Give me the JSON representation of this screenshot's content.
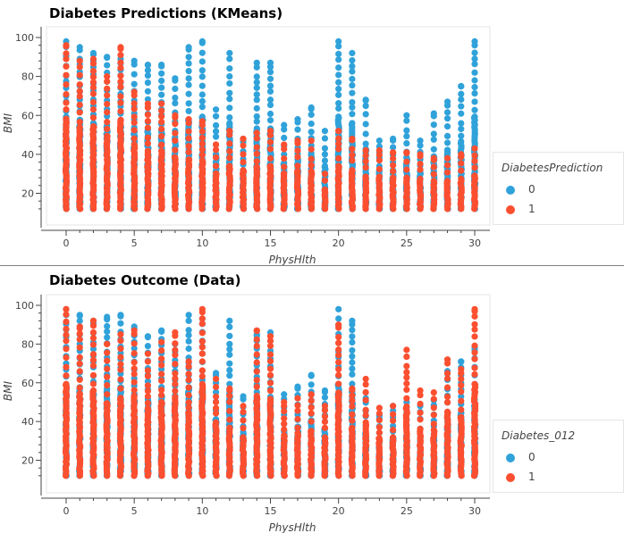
{
  "colors": {
    "class_0": "#30a2da",
    "class_1": "#fc4f30",
    "grid": "#e5e5e5",
    "axis": "#444444"
  },
  "chart_data": [
    {
      "type": "scatter",
      "title": "Diabetes Predictions (KMeans)",
      "xlabel": "PhysHlth",
      "ylabel": "BMI",
      "xlim": [
        0,
        30
      ],
      "ylim": [
        12,
        98
      ],
      "xticks": [
        0,
        5,
        10,
        15,
        20,
        25,
        30
      ],
      "yticks": [
        20,
        40,
        60,
        80,
        100
      ],
      "legend_title": "DiabetesPrediction",
      "legend_position": "right",
      "series": [
        {
          "name": "0",
          "color": "#30a2da",
          "points": [
            [
              0,
              98
            ],
            [
              1,
              95
            ],
            [
              2,
              92
            ],
            [
              3,
              90
            ],
            [
              4,
              89
            ],
            [
              5,
              88
            ],
            [
              6,
              86
            ],
            [
              7,
              86
            ],
            [
              8,
              79
            ],
            [
              9,
              95
            ],
            [
              10,
              98
            ],
            [
              11,
              63
            ],
            [
              12,
              92
            ],
            [
              13,
              48
            ],
            [
              14,
              87
            ],
            [
              15,
              87
            ],
            [
              16,
              55
            ],
            [
              17,
              58
            ],
            [
              18,
              64
            ],
            [
              19,
              52
            ],
            [
              20,
              98
            ],
            [
              21,
              92
            ],
            [
              22,
              68
            ],
            [
              23,
              47
            ],
            [
              24,
              48
            ],
            [
              25,
              60
            ],
            [
              26,
              47
            ],
            [
              27,
              61
            ],
            [
              28,
              67
            ],
            [
              29,
              75
            ],
            [
              30,
              98
            ]
          ]
        },
        {
          "name": "1",
          "color": "#fc4f30",
          "points": [
            [
              0,
              96
            ],
            [
              1,
              88
            ],
            [
              2,
              89
            ],
            [
              3,
              80
            ],
            [
              4,
              95
            ],
            [
              5,
              72
            ],
            [
              6,
              66
            ],
            [
              7,
              66
            ],
            [
              8,
              60
            ],
            [
              9,
              58
            ],
            [
              10,
              57
            ],
            [
              11,
              45
            ],
            [
              12,
              52
            ],
            [
              13,
              48
            ],
            [
              14,
              51
            ],
            [
              15,
              52
            ],
            [
              16,
              45
            ],
            [
              17,
              47
            ],
            [
              18,
              47
            ],
            [
              19,
              30
            ],
            [
              20,
              52
            ],
            [
              21,
              48
            ],
            [
              22,
              42
            ],
            [
              23,
              42
            ],
            [
              24,
              41
            ],
            [
              25,
              41
            ],
            [
              26,
              40
            ],
            [
              27,
              38
            ],
            [
              28,
              38
            ],
            [
              29,
              40
            ],
            [
              30,
              43
            ]
          ]
        }
      ]
    },
    {
      "type": "scatter",
      "title": "Diabetes Outcome (Data)",
      "xlabel": "PhysHlth",
      "ylabel": "BMI",
      "xlim": [
        0,
        30
      ],
      "ylim": [
        12,
        98
      ],
      "xticks": [
        0,
        5,
        10,
        15,
        20,
        25,
        30
      ],
      "yticks": [
        20,
        40,
        60,
        80,
        100
      ],
      "legend_title": "Diabetes_012",
      "legend_position": "right",
      "series": [
        {
          "name": "0",
          "color": "#30a2da",
          "points": [
            [
              0,
              98
            ],
            [
              1,
              95
            ],
            [
              2,
              92
            ],
            [
              3,
              94
            ],
            [
              4,
              95
            ],
            [
              5,
              89
            ],
            [
              6,
              84
            ],
            [
              7,
              87
            ],
            [
              8,
              80
            ],
            [
              9,
              95
            ],
            [
              10,
              93
            ],
            [
              11,
              65
            ],
            [
              12,
              92
            ],
            [
              13,
              53
            ],
            [
              14,
              85
            ],
            [
              15,
              86
            ],
            [
              16,
              54
            ],
            [
              17,
              58
            ],
            [
              18,
              64
            ],
            [
              19,
              56
            ],
            [
              20,
              98
            ],
            [
              21,
              92
            ],
            [
              22,
              52
            ],
            [
              23,
              43
            ],
            [
              24,
              48
            ],
            [
              25,
              50
            ],
            [
              26,
              48
            ],
            [
              27,
              51
            ],
            [
              28,
              66
            ],
            [
              29,
              71
            ],
            [
              30,
              78
            ]
          ]
        },
        {
          "name": "1",
          "color": "#fc4f30",
          "points": [
            [
              0,
              98
            ],
            [
              1,
              89
            ],
            [
              2,
              92
            ],
            [
              3,
              80
            ],
            [
              4,
              85
            ],
            [
              5,
              87
            ],
            [
              6,
              75
            ],
            [
              7,
              81
            ],
            [
              8,
              86
            ],
            [
              9,
              71
            ],
            [
              10,
              98
            ],
            [
              11,
              62
            ],
            [
              12,
              57
            ],
            [
              13,
              48
            ],
            [
              14,
              87
            ],
            [
              15,
              84
            ],
            [
              16,
              50
            ],
            [
              17,
              52
            ],
            [
              18,
              54
            ],
            [
              19,
              48
            ],
            [
              20,
              90
            ],
            [
              21,
              57
            ],
            [
              22,
              62
            ],
            [
              23,
              47
            ],
            [
              24,
              48
            ],
            [
              25,
              77
            ],
            [
              26,
              56
            ],
            [
              27,
              55
            ],
            [
              28,
              72
            ],
            [
              29,
              67
            ],
            [
              30,
              98
            ]
          ]
        }
      ]
    }
  ]
}
